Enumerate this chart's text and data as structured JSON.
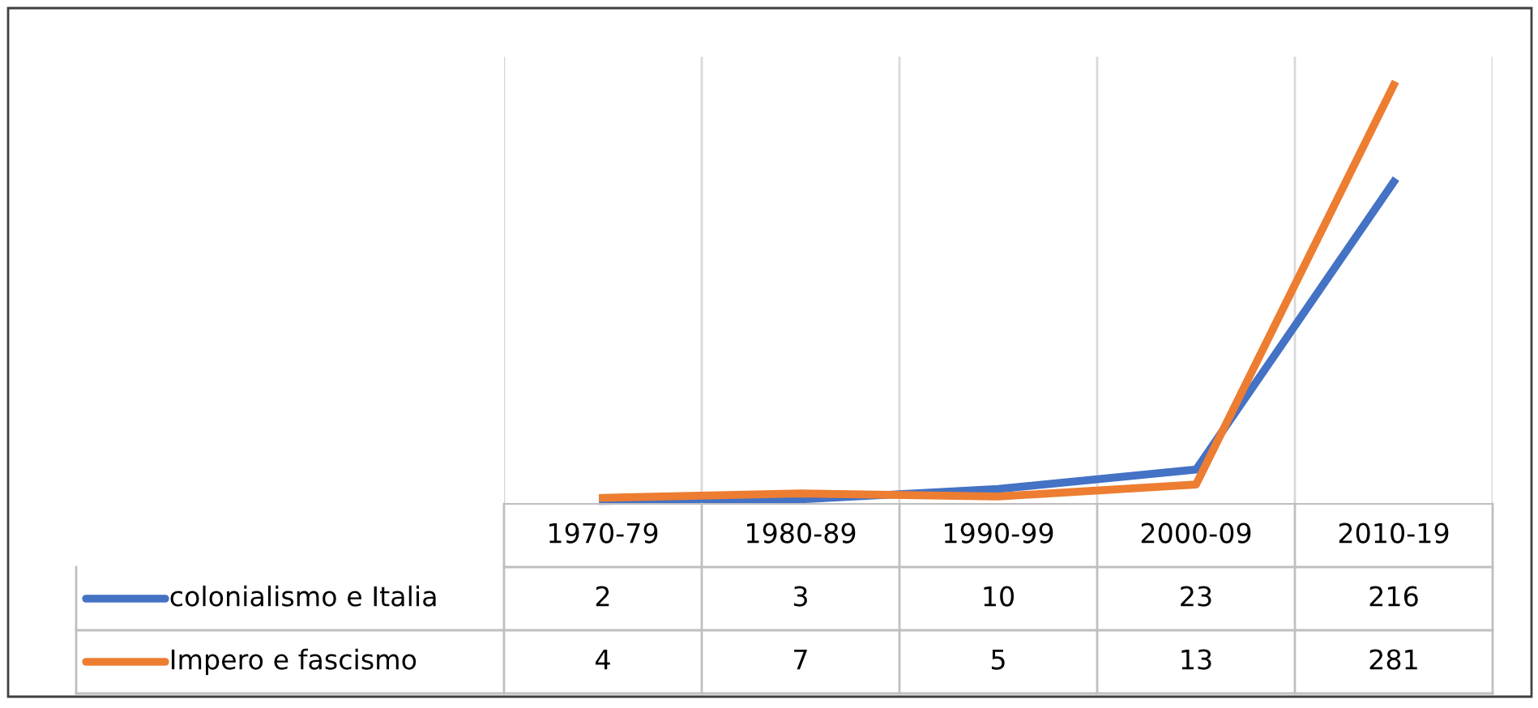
{
  "chart_data": {
    "type": "line",
    "categories": [
      "1970-79",
      "1980-89",
      "1990-99",
      "2000-09",
      "2010-19"
    ],
    "series": [
      {
        "name": "colonialismo e Italia",
        "color": "#4472c4",
        "values": [
          2,
          3,
          10,
          23,
          216
        ]
      },
      {
        "name": "Impero e fascismo",
        "color": "#ed7d31",
        "values": [
          4,
          7,
          5,
          13,
          281
        ]
      }
    ],
    "ylim": [
      0,
      300
    ],
    "grid": "x",
    "legend": "bottom",
    "data_labels": true,
    "marker": "none",
    "line_style": "solid"
  }
}
